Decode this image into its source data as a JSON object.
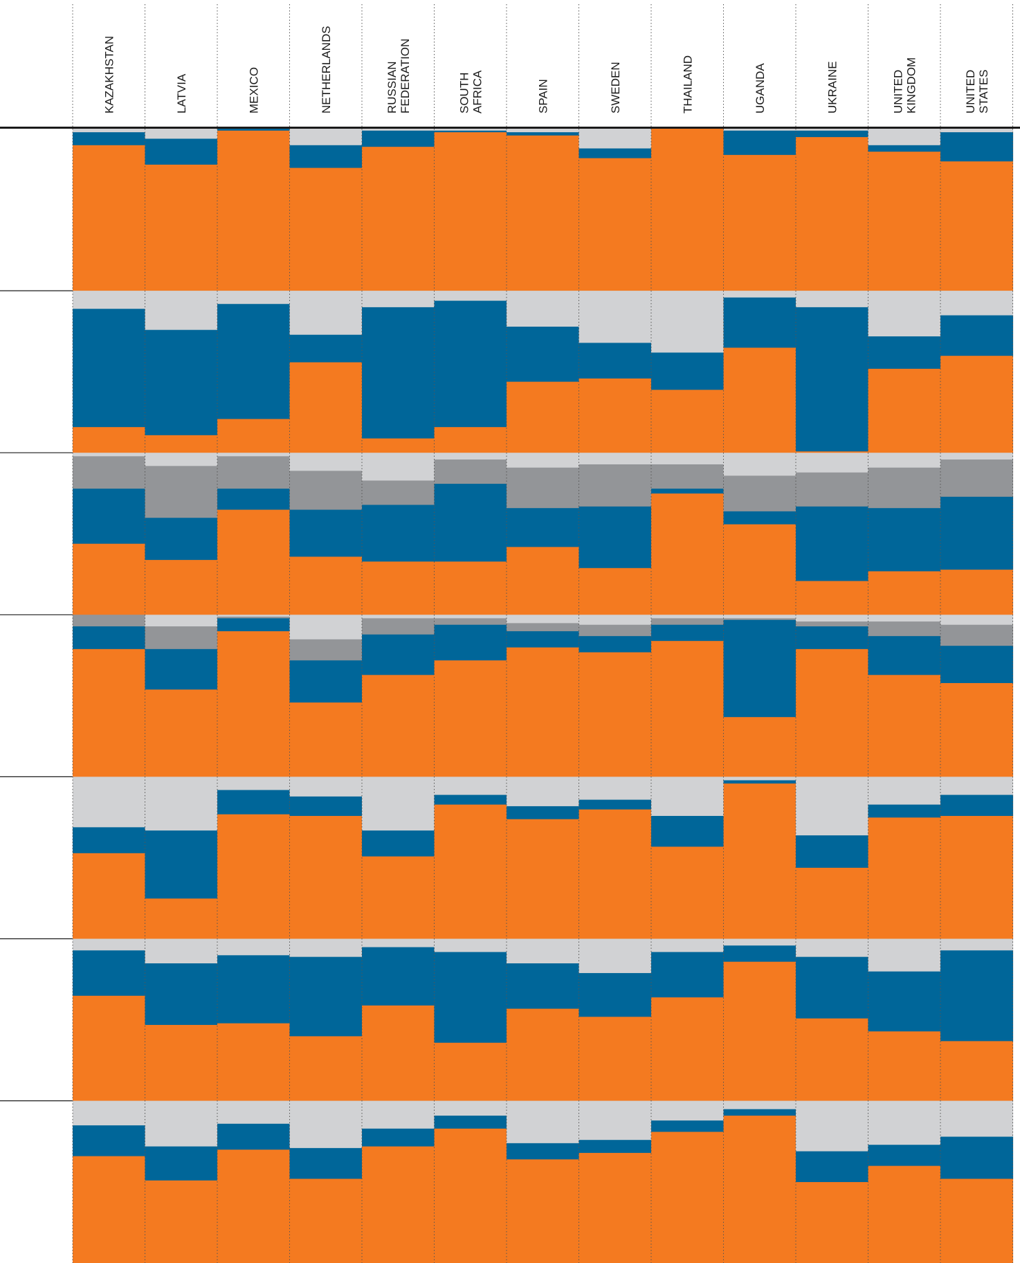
{
  "chart_data": {
    "type": "bar",
    "stacked": true,
    "orientation": "vertical-stacked-mosaic",
    "normalized_to_percent": true,
    "ylim": [
      0,
      100
    ],
    "colors": {
      "orange": "#f47a20",
      "blue": "#006699",
      "light_gray": "#d1d2d4",
      "dark_gray": "#939598"
    },
    "stack_order_bottom_to_top": [
      "orange",
      "blue",
      "dark_gray",
      "light_gray"
    ],
    "categories": [
      [
        "KAZAKHSTAN"
      ],
      [
        "LATVIA"
      ],
      [
        "MEXICO"
      ],
      [
        "NETHERLANDS"
      ],
      [
        "RUSSIAN",
        "FEDERATION"
      ],
      [
        "SOUTH",
        "AFRICA"
      ],
      [
        "SPAIN"
      ],
      [
        "SWEDEN"
      ],
      [
        "THAILAND"
      ],
      [
        "UGANDA"
      ],
      [
        "UKRAINE"
      ],
      [
        "UNITED",
        "KINGDOM"
      ],
      [
        "UNITED",
        "STATES"
      ]
    ],
    "rows": [
      {
        "orange": [
          90,
          78,
          99,
          76,
          89,
          98,
          96,
          82,
          100,
          84,
          95,
          86,
          80
        ],
        "blue": [
          8,
          16,
          1,
          14,
          10,
          1,
          2,
          6,
          0,
          15,
          4,
          4,
          18
        ],
        "dark_gray": [
          0,
          0,
          0,
          0,
          0,
          0,
          0,
          0,
          0,
          0,
          0,
          0,
          0
        ],
        "light_gray": [
          2,
          6,
          0,
          10,
          1,
          1,
          2,
          12,
          0,
          1,
          1,
          10,
          2
        ]
      },
      {
        "orange": [
          16,
          11,
          21,
          56,
          9,
          16,
          44,
          46,
          39,
          65,
          1,
          52,
          60
        ],
        "blue": [
          73,
          65,
          71,
          17,
          81,
          78,
          34,
          22,
          23,
          31,
          89,
          20,
          25
        ],
        "dark_gray": [
          0,
          0,
          0,
          0,
          0,
          0,
          0,
          0,
          0,
          0,
          0,
          0,
          0
        ],
        "light_gray": [
          11,
          24,
          8,
          27,
          10,
          6,
          22,
          32,
          38,
          4,
          10,
          28,
          15
        ]
      },
      {
        "orange": [
          44,
          34,
          65,
          36,
          33,
          33,
          42,
          29,
          75,
          56,
          21,
          27,
          28
        ],
        "blue": [
          34,
          26,
          13,
          29,
          35,
          48,
          24,
          38,
          3,
          8,
          46,
          39,
          45
        ],
        "dark_gray": [
          20,
          32,
          20,
          24,
          15,
          15,
          25,
          26,
          15,
          22,
          21,
          25,
          23
        ],
        "light_gray": [
          2,
          8,
          2,
          11,
          17,
          4,
          9,
          7,
          7,
          14,
          12,
          9,
          4
        ]
      },
      {
        "orange": [
          79,
          54,
          90,
          46,
          63,
          72,
          80,
          77,
          84,
          37,
          79,
          63,
          58
        ],
        "blue": [
          14,
          25,
          8,
          26,
          25,
          22,
          10,
          10,
          10,
          60,
          14,
          24,
          23
        ],
        "dark_gray": [
          7,
          14,
          1,
          13,
          10,
          4,
          5,
          7,
          4,
          1,
          3,
          9,
          13
        ],
        "light_gray": [
          0,
          7,
          1,
          15,
          2,
          2,
          5,
          6,
          2,
          2,
          4,
          4,
          6
        ]
      },
      {
        "orange": [
          53,
          25,
          77,
          76,
          51,
          83,
          74,
          80,
          57,
          96,
          44,
          75,
          76
        ],
        "blue": [
          16,
          42,
          15,
          12,
          16,
          6,
          8,
          6,
          19,
          2,
          20,
          8,
          13
        ],
        "dark_gray": [
          0,
          0,
          0,
          0,
          0,
          0,
          0,
          0,
          0,
          0,
          0,
          0,
          0
        ],
        "light_gray": [
          31,
          33,
          8,
          12,
          33,
          11,
          18,
          14,
          24,
          2,
          36,
          17,
          11
        ]
      },
      {
        "orange": [
          65,
          47,
          48,
          40,
          59,
          36,
          57,
          52,
          64,
          86,
          51,
          43,
          37
        ],
        "blue": [
          28,
          38,
          42,
          49,
          36,
          56,
          28,
          27,
          28,
          10,
          38,
          37,
          56
        ],
        "dark_gray": [
          0,
          0,
          0,
          0,
          0,
          0,
          0,
          0,
          0,
          0,
          0,
          0,
          0
        ],
        "light_gray": [
          7,
          15,
          10,
          11,
          5,
          8,
          15,
          21,
          8,
          4,
          11,
          20,
          7
        ]
      },
      {
        "orange": [
          66,
          51,
          70,
          52,
          72,
          83,
          64,
          68,
          81,
          91,
          50,
          60,
          52
        ],
        "blue": [
          19,
          21,
          16,
          19,
          11,
          8,
          10,
          8,
          7,
          4,
          19,
          13,
          26
        ],
        "dark_gray": [
          0,
          0,
          0,
          0,
          0,
          0,
          0,
          0,
          0,
          0,
          0,
          0,
          0
        ],
        "light_gray": [
          15,
          28,
          14,
          29,
          17,
          9,
          26,
          24,
          12,
          5,
          31,
          27,
          22
        ]
      }
    ],
    "grid": "dotted vertical separators between columns"
  }
}
